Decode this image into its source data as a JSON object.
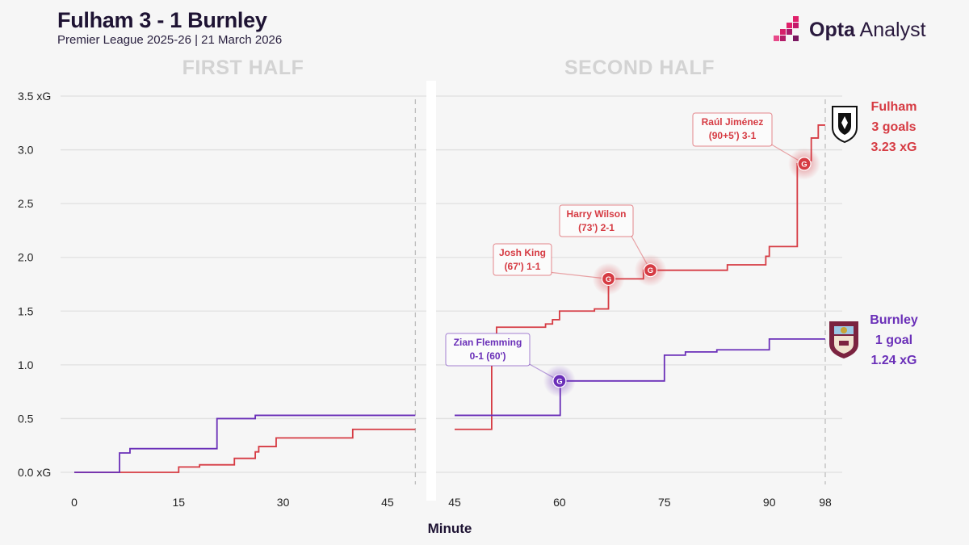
{
  "header": {
    "title": "Fulham 3 - 1 Burnley",
    "subtitle": "Premier League 2025-26 | 21 March 2026",
    "logo_bold": "Opta",
    "logo_light": "Analyst"
  },
  "colors": {
    "fulham": "#d63b43",
    "burnley": "#6a2fb8",
    "grid": "#e0e0e0"
  },
  "chart_data": {
    "type": "line",
    "subtype": "step",
    "xlabel": "Minute",
    "ylim": [
      0,
      3.5
    ],
    "y_ticks": [
      "0.0 xG",
      "0.5",
      "1.0",
      "1.5",
      "2.0",
      "2.5",
      "3.0",
      "3.5 xG"
    ],
    "y_tick_values": [
      0,
      0.5,
      1.0,
      1.5,
      2.0,
      2.5,
      3.0,
      3.5
    ],
    "panels": [
      {
        "label": "FIRST HALF",
        "xlim": [
          0,
          49
        ],
        "x_ticks": [
          0,
          15,
          30,
          45
        ],
        "end_line": 49
      },
      {
        "label": "SECOND HALF",
        "xlim": [
          45,
          98
        ],
        "x_ticks": [
          45,
          60,
          75,
          90,
          98
        ],
        "end_line": 98
      }
    ],
    "series": [
      {
        "name": "Fulham",
        "color": "#d63b43",
        "first_half": [
          [
            0,
            0
          ],
          [
            15,
            0.05
          ],
          [
            18,
            0.07
          ],
          [
            23,
            0.13
          ],
          [
            26,
            0.19
          ],
          [
            26.5,
            0.24
          ],
          [
            29,
            0.32
          ],
          [
            40,
            0.4
          ],
          [
            49,
            0.4
          ]
        ],
        "second_half": [
          [
            45,
            0.4
          ],
          [
            50,
            0.4
          ],
          [
            50.3,
            1.01
          ],
          [
            51,
            1.35
          ],
          [
            58,
            1.38
          ],
          [
            59,
            1.42
          ],
          [
            60,
            1.5
          ],
          [
            65,
            1.52
          ],
          [
            67,
            1.8
          ],
          [
            72,
            1.88
          ],
          [
            84,
            1.93
          ],
          [
            89.5,
            2.01
          ],
          [
            90,
            2.1
          ],
          [
            94,
            2.87
          ],
          [
            95,
            2.9
          ],
          [
            96,
            3.11
          ],
          [
            97,
            3.23
          ],
          [
            98,
            3.23
          ]
        ],
        "summary": [
          "Fulham",
          "3 goals",
          "3.23 xG"
        ]
      },
      {
        "name": "Burnley",
        "color": "#6a2fb8",
        "first_half": [
          [
            0,
            0
          ],
          [
            6.5,
            0.18
          ],
          [
            8,
            0.22
          ],
          [
            20.5,
            0.5
          ],
          [
            26,
            0.53
          ],
          [
            49,
            0.53
          ]
        ],
        "second_half": [
          [
            45,
            0.53
          ],
          [
            60,
            0.53
          ],
          [
            60.1,
            0.85
          ],
          [
            74.5,
            0.85
          ],
          [
            75,
            1.09
          ],
          [
            78,
            1.12
          ],
          [
            82.5,
            1.14
          ],
          [
            90,
            1.24
          ],
          [
            98,
            1.24
          ]
        ],
        "summary": [
          "Burnley",
          "1 goal",
          "1.24 xG"
        ]
      }
    ],
    "goals": [
      {
        "team": "Fulham",
        "minute": 67,
        "xg": 1.8,
        "marker": "G",
        "label": [
          "Josh King",
          "(67') 1-1"
        ]
      },
      {
        "team": "Fulham",
        "minute": 73,
        "xg": 1.88,
        "marker": "G",
        "label": [
          "Harry Wilson",
          "(73') 2-1"
        ]
      },
      {
        "team": "Fulham",
        "minute": 95,
        "xg": 2.87,
        "marker": "G",
        "label": [
          "Raúl Jiménez",
          "(90+5') 3-1"
        ]
      },
      {
        "team": "Burnley",
        "minute": 60,
        "xg": 0.85,
        "marker": "G",
        "label": [
          "Zian Flemming",
          "0-1 (60')"
        ]
      }
    ]
  }
}
